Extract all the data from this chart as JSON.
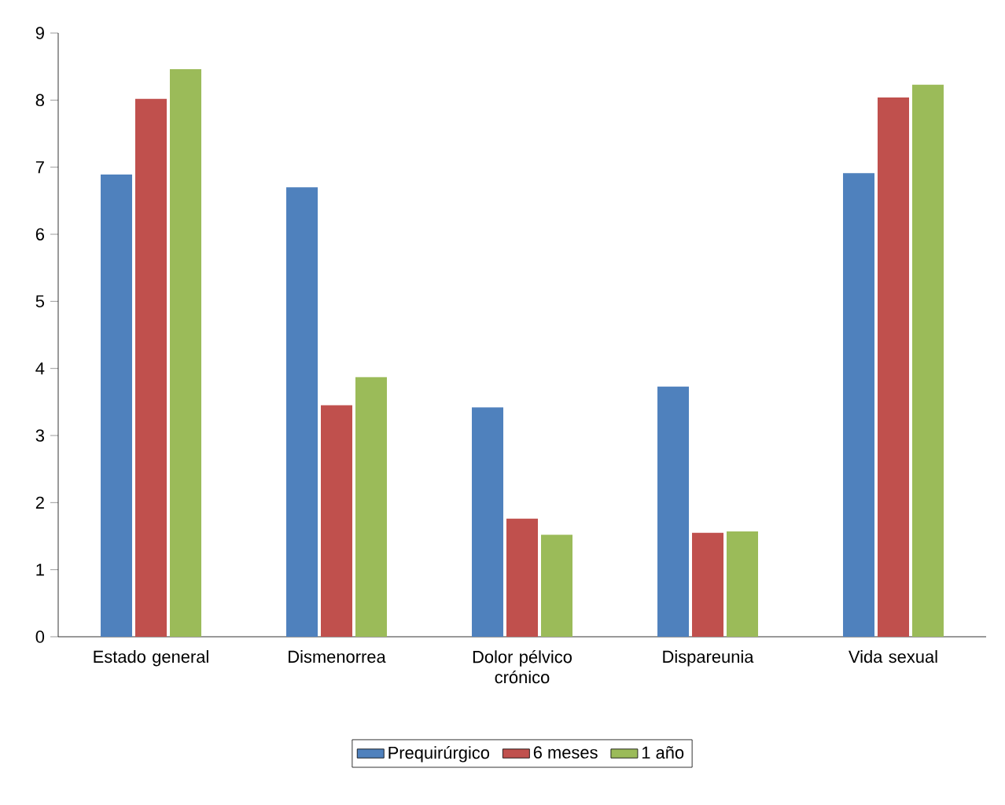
{
  "chart_data": {
    "type": "bar",
    "categories": [
      "Estado general",
      "Dismenorrea",
      "Dolor pélvico crónico",
      "Dispareunia",
      "Vida sexual"
    ],
    "series": [
      {
        "name": "Prequirúrgico",
        "color": "#4f81bd",
        "values": [
          6.89,
          6.7,
          3.42,
          3.73,
          6.91
        ]
      },
      {
        "name": "6 meses",
        "color": "#c0504d",
        "values": [
          8.02,
          3.45,
          1.76,
          1.55,
          8.04
        ]
      },
      {
        "name": "1 año",
        "color": "#9bbb59",
        "values": [
          8.46,
          3.87,
          1.52,
          1.57,
          8.23
        ]
      }
    ],
    "ylim": [
      0,
      9
    ],
    "yticks": [
      0,
      1,
      2,
      3,
      4,
      5,
      6,
      7,
      8,
      9
    ],
    "grid": false,
    "legend": "bottom"
  }
}
